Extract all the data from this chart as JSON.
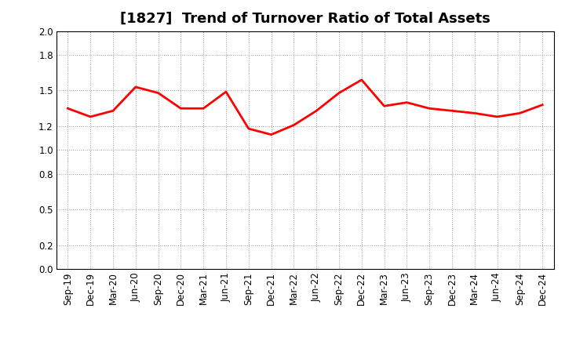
{
  "title": "[1827]  Trend of Turnover Ratio of Total Assets",
  "x_labels": [
    "Sep-19",
    "Dec-19",
    "Mar-20",
    "Jun-20",
    "Sep-20",
    "Dec-20",
    "Mar-21",
    "Jun-21",
    "Sep-21",
    "Dec-21",
    "Mar-22",
    "Jun-22",
    "Sep-22",
    "Dec-22",
    "Mar-23",
    "Jun-23",
    "Sep-23",
    "Dec-23",
    "Mar-24",
    "Jun-24",
    "Sep-24",
    "Dec-24"
  ],
  "y_values": [
    1.35,
    1.28,
    1.33,
    1.53,
    1.48,
    1.35,
    1.35,
    1.49,
    1.18,
    1.13,
    1.21,
    1.33,
    1.48,
    1.59,
    1.37,
    1.4,
    1.35,
    1.33,
    1.31,
    1.28,
    1.31,
    1.38
  ],
  "line_color": "#ff0000",
  "line_width": 2.0,
  "ylim": [
    0.0,
    2.0
  ],
  "yticks": [
    0.0,
    0.2,
    0.5,
    0.8,
    1.0,
    1.2,
    1.5,
    1.8,
    2.0
  ],
  "background_color": "#ffffff",
  "grid_color": "#999999",
  "title_fontsize": 13,
  "tick_fontsize": 8.5
}
